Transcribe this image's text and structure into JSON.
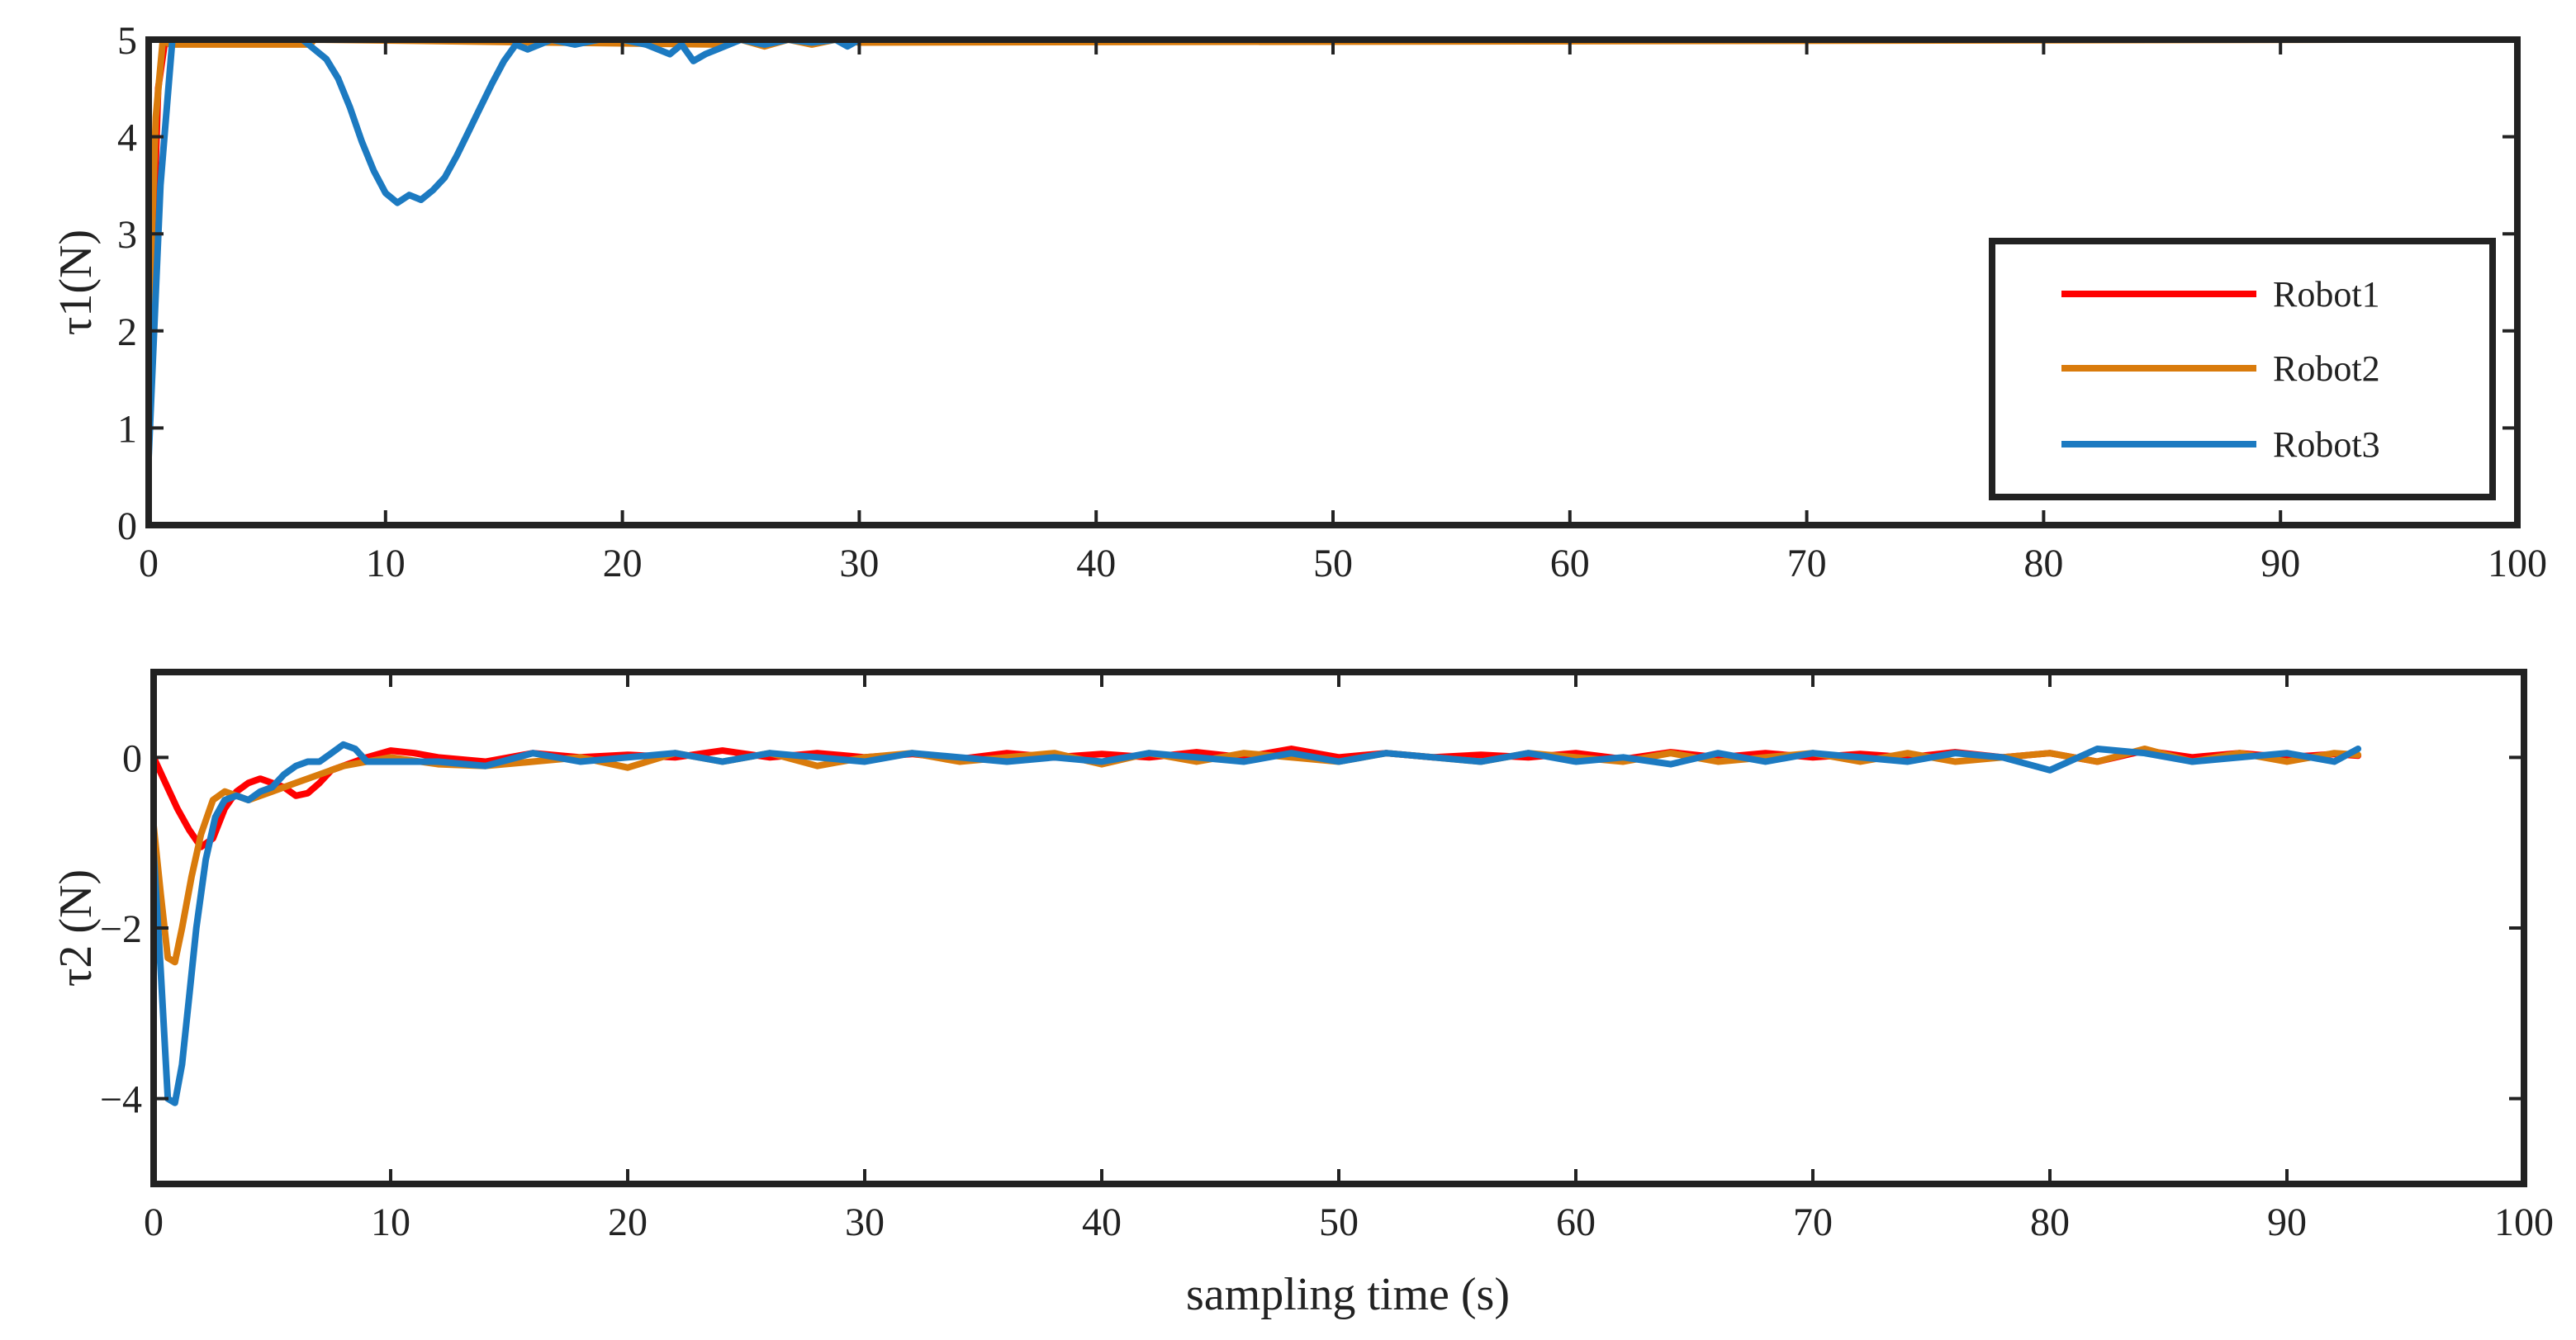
{
  "chart_data": [
    {
      "type": "line",
      "title": "",
      "xlabel": "",
      "ylabel": "τ1(N)",
      "xlim": [
        0,
        100
      ],
      "ylim": [
        0,
        5
      ],
      "xticks": [
        0,
        10,
        20,
        30,
        40,
        50,
        60,
        70,
        80,
        90,
        100
      ],
      "yticks": [
        0,
        1,
        2,
        3,
        4,
        5
      ],
      "xtick_labels": [
        "0",
        "10",
        "20",
        "30",
        "40",
        "50",
        "60",
        "70",
        "80",
        "90",
        "100"
      ],
      "ytick_labels": [
        "0",
        "1",
        "2",
        "3",
        "4",
        "5"
      ],
      "grid": false,
      "legend": {
        "placement": "right",
        "entries": [
          "Robot1",
          "Robot2",
          "Robot3"
        ]
      },
      "series": [
        {
          "name": "Robot1",
          "color": "#ff0000",
          "x": [
            0,
            0.2,
            0.4,
            0.7,
            1.0,
            93
          ],
          "y": [
            1.0,
            3.0,
            4.5,
            5.0,
            5.0,
            5.0
          ]
        },
        {
          "name": "Robot2",
          "color": "#d97b0c",
          "x": [
            0,
            0.3,
            0.6,
            0.9,
            6.8,
            7.0,
            24,
            25,
            26,
            27,
            28,
            29,
            30,
            93
          ],
          "y": [
            2.0,
            4.2,
            5.0,
            4.95,
            4.95,
            5.0,
            4.95,
            5.0,
            4.93,
            5.0,
            4.95,
            5.0,
            4.97,
            5.0
          ]
        },
        {
          "name": "Robot3",
          "color": "#1c7ac1",
          "x": [
            0,
            0.5,
            1.0,
            6.5,
            7.0,
            7.5,
            8.0,
            8.5,
            9.0,
            9.5,
            10.0,
            10.5,
            11.0,
            11.5,
            12.0,
            12.5,
            13.0,
            13.5,
            14.0,
            14.5,
            15.0,
            15.5,
            16.0,
            17.0,
            18.0,
            19.0,
            20.0,
            21.0,
            22.0,
            22.5,
            23.0,
            23.5,
            24.0,
            25.0,
            26.0,
            27.0,
            28.0,
            29.0,
            29.5,
            30.0,
            93
          ],
          "y": [
            0.7,
            3.5,
            5.0,
            5.0,
            4.9,
            4.8,
            4.6,
            4.3,
            3.95,
            3.65,
            3.42,
            3.32,
            3.4,
            3.35,
            3.45,
            3.58,
            3.8,
            4.05,
            4.3,
            4.55,
            4.78,
            4.95,
            4.9,
            5.0,
            4.95,
            5.0,
            5.0,
            4.95,
            4.85,
            4.95,
            4.78,
            4.85,
            4.9,
            5.0,
            4.95,
            5.0,
            4.97,
            5.0,
            4.93,
            5.0,
            5.0
          ]
        }
      ]
    },
    {
      "type": "line",
      "title": "",
      "xlabel": "sampling time (s)",
      "ylabel": "τ2 (N)",
      "xlim": [
        0,
        100
      ],
      "ylim": [
        -5,
        1
      ],
      "xticks": [
        0,
        10,
        20,
        30,
        40,
        50,
        60,
        70,
        80,
        90,
        100
      ],
      "yticks": [
        -4,
        -2,
        0
      ],
      "xtick_labels": [
        "0",
        "10",
        "20",
        "30",
        "40",
        "50",
        "60",
        "70",
        "80",
        "90",
        "100"
      ],
      "ytick_labels": [
        "−4",
        "−2",
        "0"
      ],
      "grid": false,
      "series": [
        {
          "name": "Robot1",
          "color": "#ff0000",
          "x": [
            0,
            0.5,
            1.0,
            1.5,
            2.0,
            2.5,
            3.0,
            3.5,
            4.0,
            4.5,
            5.0,
            5.5,
            6.0,
            6.5,
            7.0,
            7.5,
            8.0,
            9,
            10,
            11,
            12,
            14,
            16,
            18,
            20,
            22,
            24,
            26,
            28,
            30,
            32,
            34,
            36,
            38,
            40,
            42,
            44,
            46,
            48,
            50,
            52,
            54,
            56,
            58,
            60,
            62,
            64,
            66,
            68,
            70,
            72,
            74,
            76,
            78,
            80,
            82,
            84,
            86,
            88,
            90,
            92,
            93
          ],
          "y": [
            0.0,
            -0.3,
            -0.6,
            -0.85,
            -1.05,
            -0.95,
            -0.6,
            -0.4,
            -0.3,
            -0.25,
            -0.3,
            -0.35,
            -0.45,
            -0.42,
            -0.3,
            -0.15,
            -0.1,
            0.0,
            0.08,
            0.05,
            0.0,
            -0.05,
            0.05,
            0.0,
            0.03,
            0.0,
            0.08,
            0.0,
            0.05,
            0.0,
            0.04,
            -0.02,
            0.05,
            0.0,
            0.04,
            0.0,
            0.06,
            0.0,
            0.1,
            0.0,
            0.05,
            0.0,
            0.03,
            0.0,
            0.05,
            -0.02,
            0.06,
            0.0,
            0.05,
            0.0,
            0.04,
            0.0,
            0.06,
            0.0,
            0.05,
            -0.05,
            0.08,
            0.0,
            0.05,
            0.0,
            0.04,
            0.02
          ]
        },
        {
          "name": "Robot2",
          "color": "#d97b0c",
          "x": [
            0,
            0.3,
            0.6,
            0.9,
            1.2,
            1.6,
            2.0,
            2.5,
            3.0,
            3.5,
            4.0,
            5.0,
            6.0,
            7.0,
            8.0,
            9,
            10,
            12,
            14,
            16,
            18,
            20,
            22,
            24,
            26,
            28,
            30,
            32,
            34,
            36,
            38,
            40,
            42,
            44,
            46,
            48,
            50,
            52,
            54,
            56,
            58,
            60,
            62,
            64,
            66,
            68,
            70,
            72,
            74,
            76,
            78,
            80,
            82,
            84,
            86,
            88,
            90,
            92,
            93
          ],
          "y": [
            -0.8,
            -1.6,
            -2.35,
            -2.4,
            -2.0,
            -1.4,
            -0.9,
            -0.5,
            -0.4,
            -0.45,
            -0.5,
            -0.4,
            -0.3,
            -0.2,
            -0.1,
            -0.05,
            0.0,
            -0.08,
            -0.1,
            -0.05,
            0.0,
            -0.12,
            0.05,
            -0.05,
            0.05,
            -0.1,
            0.0,
            0.05,
            -0.05,
            0.0,
            0.05,
            -0.08,
            0.05,
            -0.05,
            0.05,
            0.0,
            -0.05,
            0.05,
            0.0,
            -0.05,
            0.05,
            0.0,
            -0.05,
            0.05,
            -0.05,
            0.0,
            0.05,
            -0.05,
            0.05,
            -0.05,
            0.0,
            0.05,
            -0.05,
            0.1,
            -0.05,
            0.05,
            -0.05,
            0.05,
            0.03
          ]
        },
        {
          "name": "Robot3",
          "color": "#1c7ac1",
          "x": [
            0,
            0.3,
            0.6,
            0.9,
            1.2,
            1.5,
            1.8,
            2.2,
            2.6,
            3.0,
            3.5,
            4.0,
            4.5,
            5.0,
            5.5,
            6.0,
            6.5,
            7.0,
            7.5,
            8.0,
            8.5,
            9,
            10,
            12,
            14,
            16,
            18,
            20,
            22,
            24,
            26,
            28,
            30,
            32,
            34,
            36,
            38,
            40,
            42,
            44,
            46,
            48,
            50,
            52,
            54,
            56,
            58,
            60,
            62,
            64,
            66,
            68,
            70,
            72,
            74,
            76,
            78,
            80,
            82,
            84,
            86,
            88,
            90,
            92,
            93
          ],
          "y": [
            -1.1,
            -2.5,
            -4.0,
            -4.05,
            -3.6,
            -2.8,
            -2.0,
            -1.2,
            -0.7,
            -0.5,
            -0.45,
            -0.5,
            -0.4,
            -0.35,
            -0.2,
            -0.1,
            -0.05,
            -0.05,
            0.05,
            0.15,
            0.1,
            -0.05,
            -0.05,
            -0.05,
            -0.1,
            0.05,
            -0.05,
            0.0,
            0.05,
            -0.05,
            0.05,
            0.0,
            -0.05,
            0.05,
            0.0,
            -0.05,
            0.0,
            -0.05,
            0.05,
            0.0,
            -0.05,
            0.05,
            -0.05,
            0.05,
            0.0,
            -0.05,
            0.05,
            -0.05,
            0.0,
            -0.08,
            0.05,
            -0.05,
            0.05,
            0.0,
            -0.05,
            0.05,
            0.0,
            -0.15,
            0.1,
            0.05,
            -0.05,
            0.0,
            0.05,
            -0.05,
            0.1
          ]
        }
      ]
    }
  ]
}
